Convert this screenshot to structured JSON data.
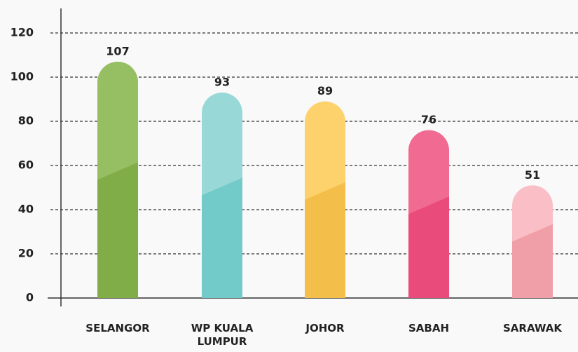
{
  "chart_data": {
    "type": "bar",
    "categories": [
      "SELANGOR",
      "WP KUALA LUMPUR",
      "JOHOR",
      "SABAH",
      "SARAWAK"
    ],
    "values": [
      107,
      93,
      89,
      76,
      51
    ],
    "colors": [
      "#80ad47",
      "#72cbc9",
      "#f3bf4a",
      "#e94b7b",
      "#f09ea8"
    ],
    "top_colors": [
      "#96bf63",
      "#98d9d8",
      "#fdd26d",
      "#f06a91",
      "#f9bec6"
    ],
    "ylim": [
      0,
      120
    ],
    "yticks": [
      0,
      20,
      40,
      60,
      80,
      100,
      120
    ],
    "grid": true
  }
}
